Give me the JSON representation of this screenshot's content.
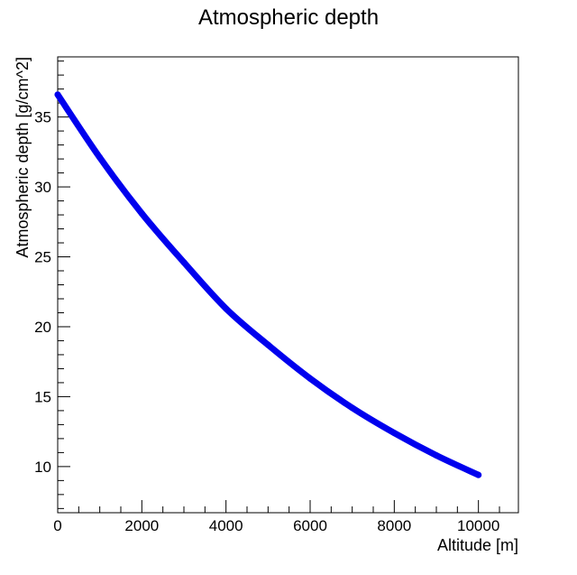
{
  "colors": {
    "series": "#0000ee",
    "axis": "#000000",
    "background": "#ffffff"
  },
  "chart_data": {
    "type": "line",
    "title": "Atmospheric depth",
    "xlabel": "Altitude [m]",
    "ylabel": "Atmospheric depth [g/cm^2]",
    "xlim": [
      0,
      10950
    ],
    "ylim": [
      6.7,
      39.3
    ],
    "x_ticks": [
      0,
      2000,
      4000,
      6000,
      8000,
      10000
    ],
    "x_tick_labels": [
      "0",
      "2000",
      "4000",
      "6000",
      "8000",
      "10000"
    ],
    "y_ticks": [
      10,
      15,
      20,
      25,
      30,
      35
    ],
    "y_tick_labels": [
      "10",
      "15",
      "20",
      "25",
      "30",
      "35"
    ],
    "grid": false,
    "series": [
      {
        "color": "#0000ee",
        "x": [
          0,
          1000,
          2000,
          3000,
          4000,
          5000,
          6000,
          7000,
          8000,
          9000,
          10000
        ],
        "y": [
          36.6,
          32.1,
          28.1,
          24.6,
          21.3,
          18.7,
          16.3,
          14.2,
          12.4,
          10.8,
          9.4
        ]
      }
    ]
  }
}
